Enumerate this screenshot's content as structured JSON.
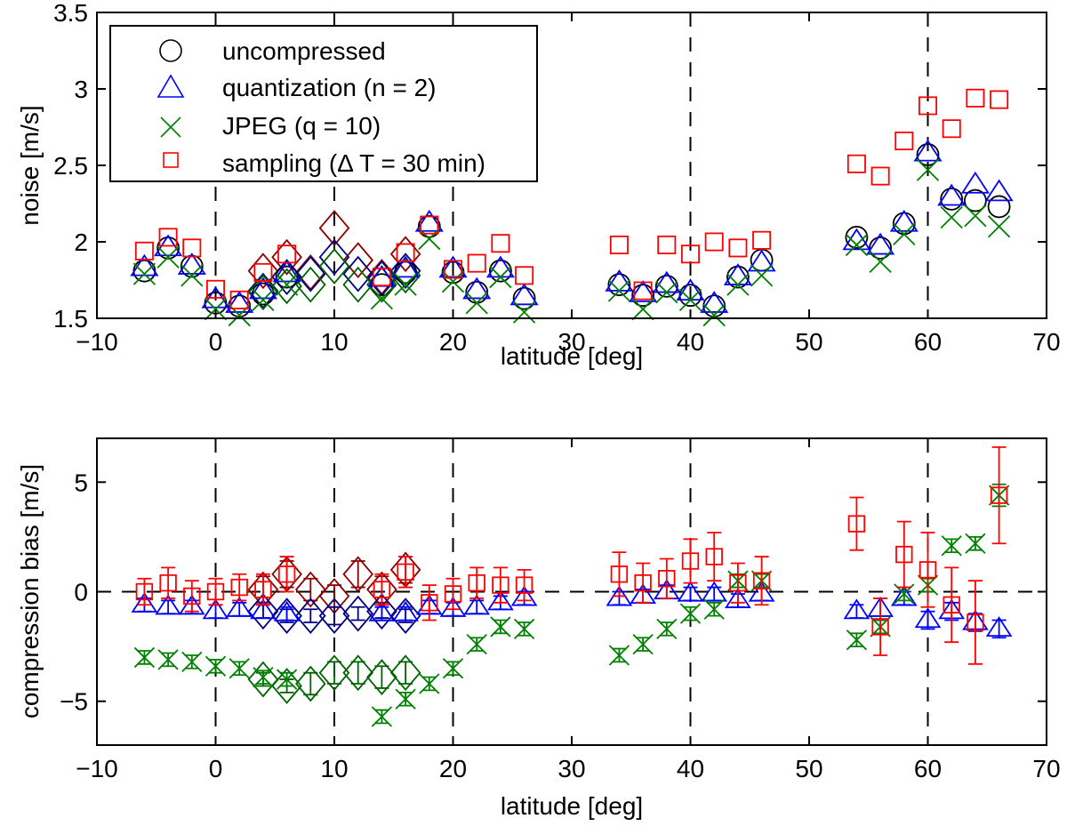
{
  "chart_data": [
    {
      "type": "scatter",
      "id": "noise",
      "title": "",
      "xlabel": "latitude [deg]",
      "ylabel": "noise [m/s]",
      "xlim": [
        -10,
        70
      ],
      "ylim": [
        1.5,
        3.5
      ],
      "xticks": [
        -10,
        0,
        10,
        20,
        30,
        40,
        50,
        60,
        70
      ],
      "yticks": [
        1.5,
        2,
        2.5,
        3,
        3.5
      ],
      "xtick_labels": [
        "−10",
        "0",
        "10",
        "20",
        "30",
        "40",
        "50",
        "60",
        "70"
      ],
      "ytick_labels": [
        "1.5",
        "2",
        "2.5",
        "3",
        "3.5"
      ],
      "grid": false,
      "vlines_dashed": [
        0,
        10,
        20,
        40,
        60
      ],
      "legend": {
        "placement": "top-left",
        "entries": [
          {
            "label": "uncompressed",
            "marker": "circle",
            "color": "#000000"
          },
          {
            "label": "quantization (n = 2)",
            "marker": "triangle",
            "color": "#0000ff"
          },
          {
            "label": "JPEG (q = 10)",
            "marker": "x",
            "color": "#008000"
          },
          {
            "label": "sampling (Δ T = 30 min)",
            "marker": "square",
            "color": "#ff0000"
          }
        ]
      },
      "x": [
        -6,
        -4,
        -2,
        0,
        2,
        4,
        6,
        8,
        10,
        12,
        14,
        16,
        18,
        20,
        22,
        24,
        26,
        34,
        36,
        38,
        40,
        42,
        44,
        46,
        54,
        56,
        58,
        60,
        62,
        64,
        66
      ],
      "series": [
        {
          "name": "uncompressed",
          "marker": "circle",
          "color": "#000000",
          "values": [
            1.81,
            1.96,
            1.84,
            1.6,
            1.58,
            1.66,
            1.77,
            null,
            null,
            null,
            1.72,
            1.8,
            2.1,
            1.8,
            1.67,
            1.81,
            1.63,
            1.72,
            1.65,
            1.71,
            1.65,
            1.58,
            1.77,
            1.88,
            2.03,
            1.96,
            2.12,
            2.57,
            2.28,
            2.27,
            2.23
          ]
        },
        {
          "name": "quantization (n = 2)",
          "marker": "triangle",
          "color": "#0000ff",
          "values": [
            1.83,
            1.96,
            1.84,
            1.62,
            1.59,
            1.68,
            1.79,
            null,
            null,
            null,
            1.76,
            1.82,
            2.12,
            1.82,
            1.68,
            1.82,
            1.64,
            1.73,
            1.66,
            1.72,
            1.67,
            1.59,
            1.77,
            1.86,
            2.0,
            1.97,
            2.12,
            2.58,
            2.29,
            2.37,
            2.32
          ]
        },
        {
          "name": "JPEG (q = 10)",
          "marker": "x",
          "color": "#008000",
          "values": [
            1.79,
            1.9,
            1.78,
            1.56,
            1.52,
            1.62,
            1.72,
            null,
            null,
            null,
            1.63,
            1.72,
            2.02,
            1.74,
            1.6,
            1.77,
            1.54,
            1.68,
            1.56,
            1.67,
            1.62,
            1.52,
            1.72,
            1.78,
            1.98,
            1.87,
            2.05,
            2.47,
            2.16,
            2.17,
            2.1
          ]
        },
        {
          "name": "sampling (Δ T = 30 min)",
          "marker": "square",
          "color": "#ff0000",
          "values": [
            1.94,
            2.03,
            1.96,
            1.69,
            1.62,
            1.8,
            1.92,
            null,
            null,
            null,
            1.77,
            1.93,
            2.11,
            1.82,
            1.86,
            1.99,
            1.78,
            1.98,
            1.68,
            1.98,
            1.92,
            2.0,
            1.96,
            2.01,
            2.51,
            2.43,
            2.66,
            2.89,
            2.74,
            2.94,
            2.93
          ]
        }
      ],
      "diamond_series": [
        {
          "name": "diamond-darkred",
          "color": "#8b0000",
          "x": [
            4,
            6,
            8,
            10,
            12,
            14,
            16
          ],
          "values": [
            1.81,
            1.9,
            1.8,
            2.09,
            1.88,
            1.77,
            1.92
          ]
        },
        {
          "name": "diamond-navy",
          "color": "#000080",
          "x": [
            4,
            6,
            8,
            10,
            12,
            14,
            16
          ],
          "values": [
            1.68,
            1.77,
            1.79,
            1.9,
            1.79,
            1.76,
            1.81
          ]
        },
        {
          "name": "diamond-darkgreen",
          "color": "#006400",
          "x": [
            4,
            6,
            8,
            10,
            12,
            14,
            16
          ],
          "values": [
            1.67,
            1.71,
            1.72,
            1.84,
            1.72,
            1.72,
            1.78
          ]
        }
      ]
    },
    {
      "type": "scatter",
      "id": "bias",
      "title": "",
      "xlabel": "latitude [deg]",
      "ylabel": "compression bias [m/s]",
      "xlim": [
        -10,
        70
      ],
      "ylim": [
        -7,
        7
      ],
      "xticks": [
        -10,
        0,
        10,
        20,
        30,
        40,
        50,
        60,
        70
      ],
      "yticks": [
        -5,
        0,
        5
      ],
      "xtick_labels": [
        "−10",
        "0",
        "10",
        "20",
        "30",
        "40",
        "50",
        "60",
        "70"
      ],
      "ytick_labels": [
        "−5",
        "0",
        "5"
      ],
      "grid": false,
      "vlines_dashed": [
        0,
        10,
        20,
        40,
        60
      ],
      "hline_dashed": 0,
      "x": [
        -6,
        -4,
        -2,
        0,
        2,
        4,
        6,
        8,
        10,
        12,
        14,
        16,
        18,
        20,
        22,
        24,
        26,
        34,
        36,
        38,
        40,
        42,
        44,
        46,
        54,
        56,
        58,
        60,
        62,
        64,
        66
      ],
      "series": [
        {
          "name": "quantization (n = 2)",
          "marker": "triangle",
          "color": "#0000ff",
          "values": [
            -0.6,
            -0.7,
            -0.7,
            -0.9,
            -0.8,
            -0.9,
            -1.0,
            null,
            null,
            null,
            -1.0,
            -1.0,
            -0.7,
            -0.8,
            -0.7,
            -0.5,
            -0.3,
            -0.3,
            -0.2,
            0.0,
            -0.1,
            -0.1,
            -0.4,
            -0.1,
            -0.9,
            -0.8,
            -0.3,
            -1.3,
            -0.9,
            -1.4,
            -1.7
          ],
          "err": [
            0.3,
            0.3,
            0.3,
            0.3,
            0.3,
            0.3,
            0.3,
            null,
            null,
            null,
            0.3,
            0.3,
            0.3,
            0.3,
            0.3,
            0.3,
            0.3,
            0.3,
            0.3,
            0.3,
            0.3,
            0.3,
            0.3,
            0.3,
            0.3,
            0.5,
            0.3,
            0.4,
            0.4,
            0.4,
            0.4
          ]
        },
        {
          "name": "JPEG (q = 10)",
          "marker": "x",
          "color": "#008000",
          "values": [
            -3.0,
            -3.1,
            -3.2,
            -3.4,
            -3.5,
            -3.9,
            -4.0,
            null,
            null,
            null,
            -5.7,
            -4.9,
            -4.2,
            -3.5,
            -2.4,
            -1.6,
            -1.7,
            -2.9,
            -2.4,
            -1.7,
            -1.0,
            -0.8,
            0.5,
            0.5,
            -2.2,
            -1.6,
            -0.1,
            0.3,
            2.1,
            2.2,
            4.4
          ],
          "err": [
            0.3,
            0.3,
            0.3,
            0.3,
            0.3,
            0.3,
            0.3,
            null,
            null,
            null,
            0.3,
            0.3,
            0.3,
            0.3,
            0.3,
            0.3,
            0.3,
            0.3,
            0.3,
            0.3,
            0.3,
            0.3,
            0.3,
            0.3,
            0.3,
            0.3,
            0.3,
            0.3,
            0.3,
            0.3,
            0.5
          ]
        },
        {
          "name": "sampling (Δ T = 30 min)",
          "marker": "square",
          "color": "#ff0000",
          "values": [
            0.0,
            0.4,
            -0.2,
            0.0,
            0.2,
            0.1,
            0.8,
            null,
            null,
            null,
            0.1,
            0.9,
            -0.5,
            -0.1,
            0.4,
            0.3,
            0.3,
            0.8,
            0.4,
            0.6,
            1.4,
            1.6,
            0.4,
            0.5,
            3.1,
            -1.6,
            1.7,
            1.0,
            -0.6,
            -1.4,
            4.4
          ],
          "err": [
            0.6,
            0.7,
            0.7,
            0.6,
            0.6,
            0.7,
            0.8,
            null,
            null,
            null,
            0.7,
            0.7,
            0.8,
            0.7,
            0.7,
            0.8,
            0.7,
            1.0,
            0.9,
            0.9,
            1.0,
            1.1,
            0.9,
            1.1,
            1.2,
            1.3,
            1.5,
            1.7,
            1.7,
            1.9,
            2.2
          ]
        }
      ],
      "diamond_series": [
        {
          "name": "diamond-darkred",
          "color": "#8b0000",
          "x": [
            4,
            6,
            8,
            10,
            12,
            14,
            16
          ],
          "values": [
            0.1,
            0.8,
            0.1,
            -0.2,
            0.8,
            0.1,
            1.0
          ],
          "err": [
            0.6,
            0.6,
            0.5,
            0.5,
            0.6,
            0.6,
            0.6
          ]
        },
        {
          "name": "diamond-navy",
          "color": "#000080",
          "x": [
            4,
            6,
            8,
            10,
            12,
            14,
            16
          ],
          "values": [
            -0.9,
            -1.1,
            -1.1,
            -1.1,
            -1.0,
            -0.9,
            -1.1
          ],
          "err": [
            0.3,
            0.3,
            0.3,
            0.4,
            0.3,
            0.3,
            0.3
          ]
        },
        {
          "name": "diamond-darkgreen",
          "color": "#006400",
          "x": [
            4,
            6,
            8,
            10,
            12,
            14,
            16
          ],
          "values": [
            -4.0,
            -4.3,
            -4.2,
            -3.7,
            -3.7,
            -3.9,
            -3.7
          ],
          "err": [
            0.3,
            0.3,
            0.5,
            0.5,
            0.5,
            0.5,
            0.5
          ]
        }
      ]
    }
  ]
}
